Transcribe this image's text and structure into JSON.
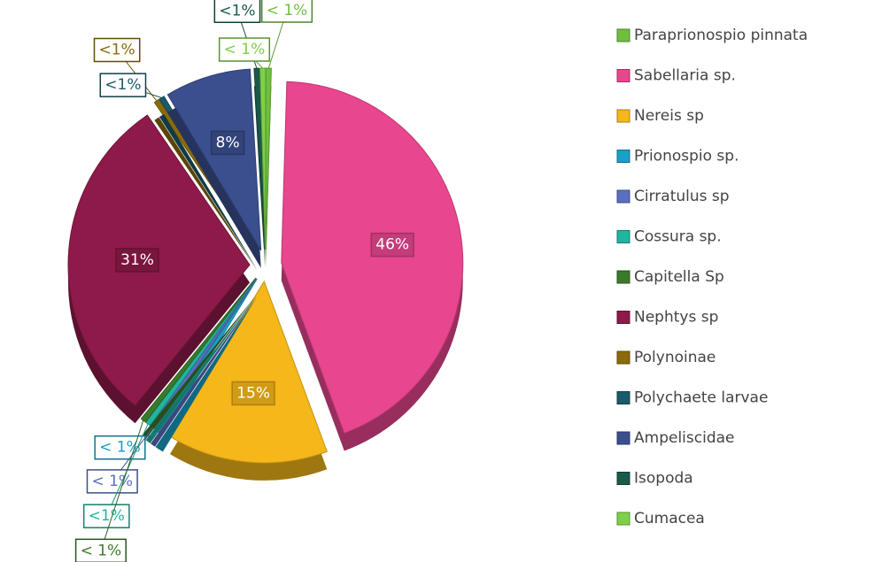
{
  "chart_data": {
    "type": "pie",
    "categories": [
      "Paraprionospio pinnata",
      "Sabellaria  sp.",
      "Nereis sp",
      "Prionospio sp.",
      "Cirratulus sp",
      "Cossura sp.",
      "Capitella Sp",
      "Nephtys sp",
      "Polynoinae",
      "Polychaete larvae",
      "Ampeliscidae",
      "Isopoda",
      "Cumacea"
    ],
    "values": [
      0.5,
      46,
      15,
      0.8,
      0.5,
      0.5,
      0.5,
      31,
      0.5,
      0.5,
      8,
      0.5,
      0.5
    ],
    "value_labels": [
      "< 1%",
      "46%",
      "15%",
      "< 1%",
      "< 1%",
      "<1%",
      "< 1%",
      "31%",
      "<1%",
      "<1%",
      "8%",
      "<1%",
      "< 1%"
    ],
    "colors": [
      "#6fbf3f",
      "#e8468f",
      "#f5b719",
      "#1aa0c8",
      "#5a6fc0",
      "#20b5a0",
      "#3a7a2a",
      "#8e1a4a",
      "#8a6a0a",
      "#1a5a6a",
      "#3b4f8f",
      "#1a5a4a",
      "#7ed04a"
    ],
    "legend": "right"
  }
}
